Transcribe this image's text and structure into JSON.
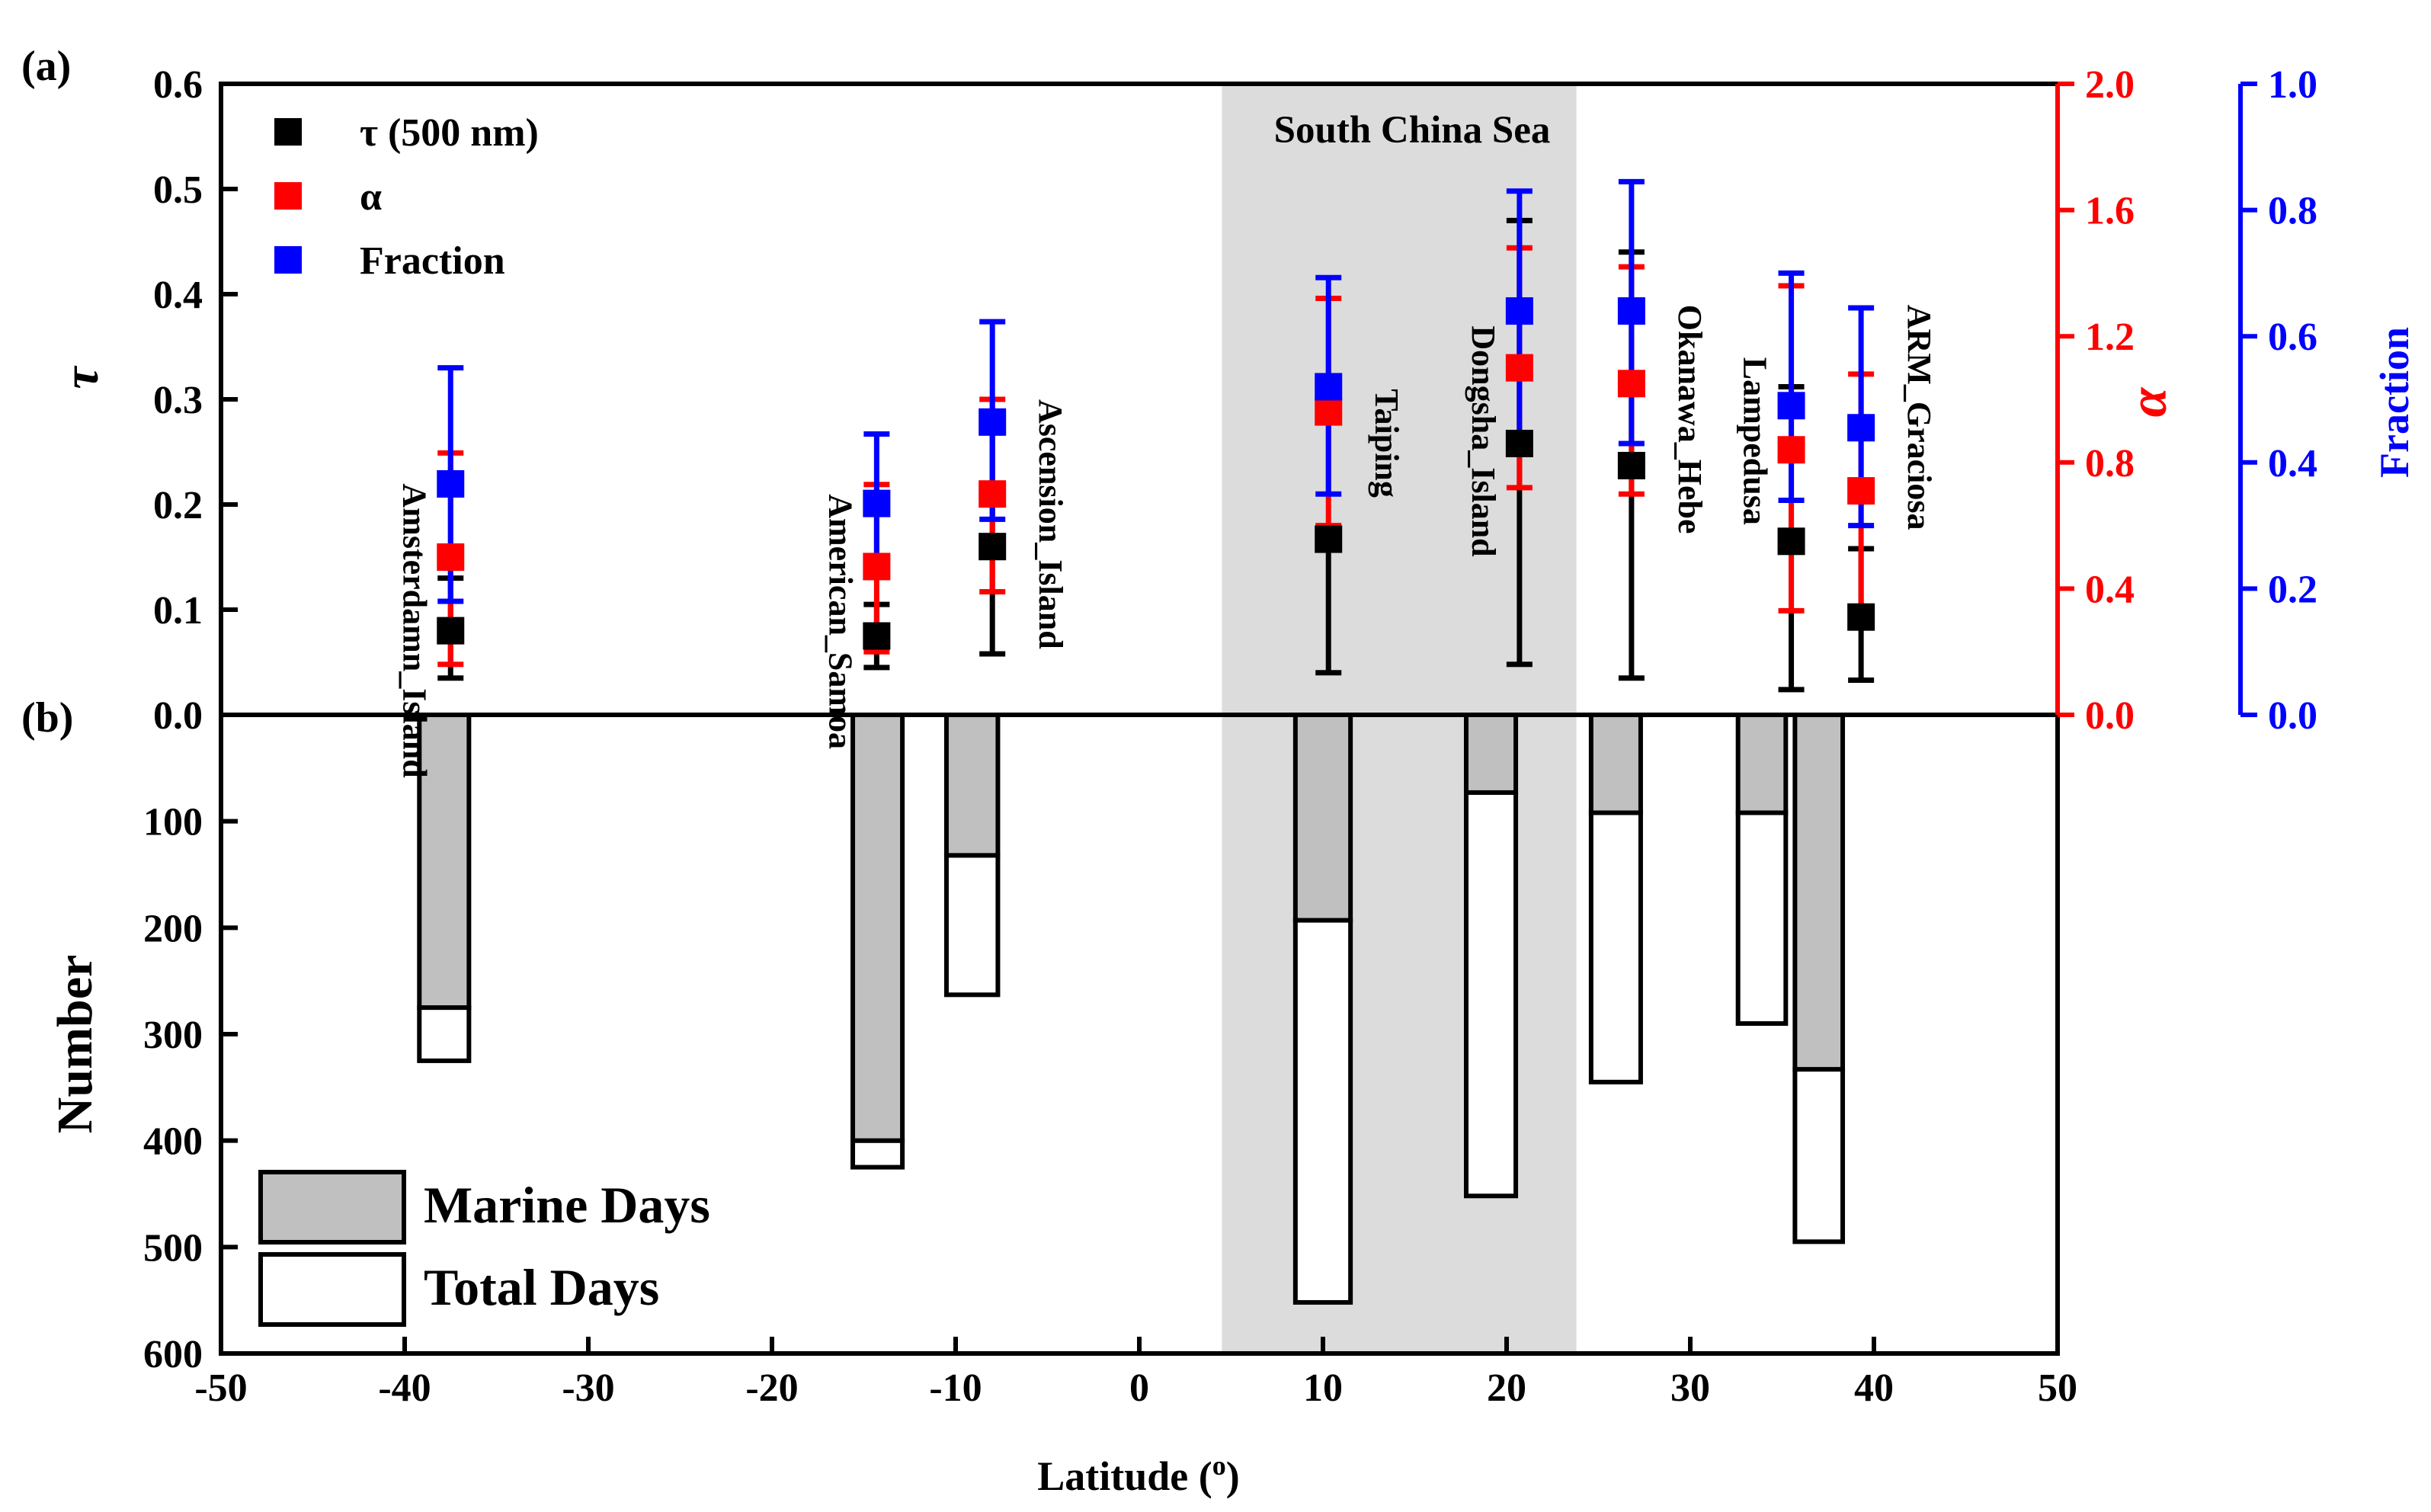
{
  "figure": {
    "panel_a_label": "(a)",
    "panel_b_label": "(b)",
    "region_label": "South China Sea",
    "x_axis_label": "Latitude (o)"
  },
  "chart_data": [
    {
      "type": "scatter",
      "panel": "(a)",
      "xlabel": "Latitude (o)",
      "xlim": [
        -50,
        50
      ],
      "x_ticks": [
        -50,
        -40,
        -30,
        -20,
        -10,
        0,
        10,
        20,
        30,
        40,
        50
      ],
      "shaded_region": {
        "label": "South China Sea",
        "x_range": [
          4.5,
          23.8
        ],
        "color": "#dcdcdc"
      },
      "axes": {
        "tau": {
          "label": "τ",
          "side": "left",
          "ylim": [
            0,
            0.6
          ],
          "ticks": [
            0.0,
            0.1,
            0.2,
            0.3,
            0.4,
            0.5,
            0.6
          ],
          "color": "#000000"
        },
        "alpha": {
          "label": "α",
          "side": "right",
          "ylim": [
            0,
            2.0
          ],
          "ticks": [
            0.0,
            0.4,
            0.8,
            1.2,
            1.6,
            2.0
          ],
          "color": "#ff0000"
        },
        "fraction": {
          "label": "Fraction",
          "side": "right-outer",
          "ylim": [
            0,
            1.0
          ],
          "ticks": [
            0.0,
            0.2,
            0.4,
            0.6,
            0.8,
            1.0
          ],
          "color": "#0000ff"
        }
      },
      "legend": {
        "position": "top-left",
        "entries": [
          {
            "label": "τ (500 nm)",
            "color": "#000000"
          },
          {
            "label": "α",
            "color": "#ff0000"
          },
          {
            "label": "Fraction",
            "color": "#0000ff"
          }
        ]
      },
      "sites": [
        {
          "name": "Amsterdamn_Island",
          "label_side": "left",
          "label_anchor": 0.22,
          "tau": {
            "x": -37.5,
            "mean": 0.08,
            "low": 0.035,
            "high": 0.13
          },
          "alpha": {
            "x": -37.5,
            "mean": 0.5,
            "low": 0.16,
            "high": 0.83
          },
          "fraction": {
            "x": -37.5,
            "mean": 0.366,
            "low": 0.18,
            "high": 0.55
          }
        },
        {
          "name": "American_Samoa",
          "label_side": "left",
          "label_anchor": 0.21,
          "tau": {
            "x": -14.3,
            "mean": 0.075,
            "low": 0.045,
            "high": 0.105
          },
          "alpha": {
            "x": -14.3,
            "mean": 0.47,
            "low": 0.2,
            "high": 0.73
          },
          "fraction": {
            "x": -14.3,
            "mean": 0.335,
            "low": 0.22,
            "high": 0.445
          }
        },
        {
          "name": "Ascension_Island",
          "label_side": "right",
          "label_anchor": 0.3,
          "tau": {
            "x": -8.0,
            "mean": 0.16,
            "low": 0.058,
            "high": 0.272
          },
          "alpha": {
            "x": -8.0,
            "mean": 0.7,
            "low": 0.39,
            "high": 1.0
          },
          "fraction": {
            "x": -8.0,
            "mean": 0.464,
            "low": 0.31,
            "high": 0.623
          }
        },
        {
          "name": "Taiping",
          "label_side": "right",
          "label_anchor": 0.31,
          "tau": {
            "x": 10.3,
            "mean": 0.167,
            "low": 0.04,
            "high": 0.175
          },
          "alpha": {
            "x": 10.3,
            "mean": 0.96,
            "low": 0.6,
            "high": 1.32
          },
          "fraction": {
            "x": 10.3,
            "mean": 0.52,
            "low": 0.35,
            "high": 0.693
          }
        },
        {
          "name": "Dongsha_Island",
          "label_side": "left",
          "label_anchor": 0.37,
          "tau": {
            "x": 20.7,
            "mean": 0.258,
            "low": 0.048,
            "high": 0.47
          },
          "alpha": {
            "x": 20.7,
            "mean": 1.1,
            "low": 0.72,
            "high": 1.48
          },
          "fraction": {
            "x": 20.7,
            "mean": 0.64,
            "low": 0.44,
            "high": 0.83
          }
        },
        {
          "name": "Okanawa_Hebe",
          "label_side": "right",
          "label_anchor": 0.39,
          "tau": {
            "x": 26.8,
            "mean": 0.237,
            "low": 0.035,
            "high": 0.44
          },
          "alpha": {
            "x": 26.8,
            "mean": 1.05,
            "low": 0.7,
            "high": 1.42
          },
          "fraction": {
            "x": 26.8,
            "mean": 0.64,
            "low": 0.43,
            "high": 0.845
          }
        },
        {
          "name": "Lampedusa",
          "label_side": "left",
          "label_anchor": 0.34,
          "tau": {
            "x": 35.5,
            "mean": 0.165,
            "low": 0.024,
            "high": 0.312
          },
          "alpha": {
            "x": 35.5,
            "mean": 0.84,
            "low": 0.33,
            "high": 1.36
          },
          "fraction": {
            "x": 35.5,
            "mean": 0.49,
            "low": 0.34,
            "high": 0.7
          }
        },
        {
          "name": "ARM_Graciosa",
          "label_side": "right",
          "label_anchor": 0.39,
          "tau": {
            "x": 39.3,
            "mean": 0.093,
            "low": 0.033,
            "high": 0.158
          },
          "alpha": {
            "x": 39.3,
            "mean": 0.71,
            "low": 0.34,
            "high": 1.08
          },
          "fraction": {
            "x": 39.3,
            "mean": 0.455,
            "low": 0.3,
            "high": 0.645
          }
        }
      ]
    },
    {
      "type": "bar",
      "panel": "(b)",
      "ylabel": "Number",
      "ylim": [
        0,
        600
      ],
      "y_inverted": true,
      "y_ticks": [
        0,
        100,
        200,
        300,
        400,
        500,
        600
      ],
      "xlabel": "Latitude (o)",
      "xlim": [
        -50,
        50
      ],
      "x_ticks": [
        -50,
        -40,
        -30,
        -20,
        -10,
        0,
        10,
        20,
        30,
        40,
        50
      ],
      "legend": {
        "position": "bottom-left",
        "entries": [
          {
            "label": "Marine Days",
            "color": "#c0c0c0"
          },
          {
            "label": "Total Days",
            "color": "#ffffff"
          }
        ]
      },
      "bars": [
        {
          "x_left": -39.2,
          "x_right": -36.5,
          "marine_days": 275,
          "total_days": 325
        },
        {
          "x_left": -15.6,
          "x_right": -12.9,
          "marine_days": 400,
          "total_days": 425
        },
        {
          "x_left": -10.5,
          "x_right": -7.7,
          "marine_days": 132,
          "total_days": 263
        },
        {
          "x_left": 8.5,
          "x_right": 11.5,
          "marine_days": 193,
          "total_days": 552
        },
        {
          "x_left": 17.8,
          "x_right": 20.5,
          "marine_days": 73,
          "total_days": 452
        },
        {
          "x_left": 24.6,
          "x_right": 27.3,
          "marine_days": 92,
          "total_days": 345
        },
        {
          "x_left": 32.6,
          "x_right": 35.2,
          "marine_days": 92,
          "total_days": 290
        },
        {
          "x_left": 35.7,
          "x_right": 38.3,
          "marine_days": 333,
          "total_days": 495
        }
      ]
    }
  ]
}
